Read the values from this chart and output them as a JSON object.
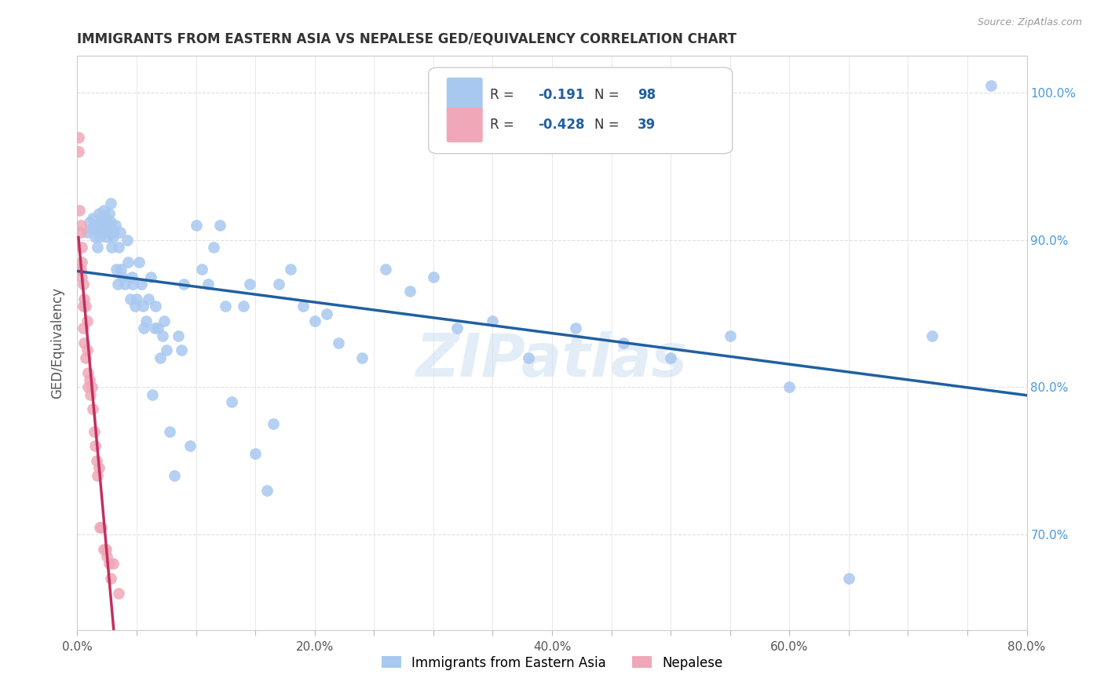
{
  "title": "IMMIGRANTS FROM EASTERN ASIA VS NEPALESE GED/EQUIVALENCY CORRELATION CHART",
  "source": "Source: ZipAtlas.com",
  "ylabel": "GED/Equivalency",
  "legend_label1": "Immigrants from Eastern Asia",
  "legend_label2": "Nepalese",
  "r1": "-0.191",
  "n1": "98",
  "r2": "-0.428",
  "n2": "39",
  "blue_color": "#A8C8F0",
  "pink_color": "#F0A8B8",
  "blue_line_color": "#2060A0",
  "pink_line_color": "#C03060",
  "xlim": [
    0.0,
    0.8
  ],
  "ylim": [
    0.635,
    1.025
  ],
  "ytick_positions": [
    0.7,
    0.8,
    0.9,
    1.0
  ],
  "ytick_labels": [
    "70.0%",
    "80.0%",
    "90.0%",
    "100.0%"
  ],
  "blue_x": [
    0.008,
    0.01,
    0.012,
    0.013,
    0.015,
    0.016,
    0.017,
    0.018,
    0.018,
    0.019,
    0.02,
    0.02,
    0.021,
    0.022,
    0.022,
    0.023,
    0.023,
    0.024,
    0.025,
    0.025,
    0.026,
    0.027,
    0.027,
    0.028,
    0.028,
    0.029,
    0.029,
    0.03,
    0.031,
    0.032,
    0.033,
    0.034,
    0.035,
    0.036,
    0.037,
    0.038,
    0.04,
    0.042,
    0.043,
    0.045,
    0.046,
    0.047,
    0.049,
    0.05,
    0.052,
    0.054,
    0.055,
    0.056,
    0.058,
    0.06,
    0.062,
    0.063,
    0.065,
    0.066,
    0.068,
    0.07,
    0.072,
    0.073,
    0.075,
    0.078,
    0.082,
    0.085,
    0.088,
    0.09,
    0.095,
    0.1,
    0.105,
    0.11,
    0.115,
    0.12,
    0.125,
    0.13,
    0.14,
    0.145,
    0.15,
    0.16,
    0.165,
    0.17,
    0.18,
    0.19,
    0.2,
    0.21,
    0.22,
    0.24,
    0.26,
    0.28,
    0.3,
    0.32,
    0.35,
    0.38,
    0.42,
    0.46,
    0.5,
    0.55,
    0.6,
    0.65,
    0.72,
    0.77
  ],
  "blue_y": [
    0.905,
    0.912,
    0.908,
    0.915,
    0.902,
    0.91,
    0.895,
    0.905,
    0.918,
    0.902,
    0.908,
    0.915,
    0.912,
    0.908,
    0.92,
    0.905,
    0.91,
    0.915,
    0.908,
    0.902,
    0.91,
    0.918,
    0.905,
    0.925,
    0.912,
    0.908,
    0.895,
    0.902,
    0.905,
    0.91,
    0.88,
    0.87,
    0.895,
    0.905,
    0.88,
    0.875,
    0.87,
    0.9,
    0.885,
    0.86,
    0.875,
    0.87,
    0.855,
    0.86,
    0.885,
    0.87,
    0.855,
    0.84,
    0.845,
    0.86,
    0.875,
    0.795,
    0.84,
    0.855,
    0.84,
    0.82,
    0.835,
    0.845,
    0.825,
    0.77,
    0.74,
    0.835,
    0.825,
    0.87,
    0.76,
    0.91,
    0.88,
    0.87,
    0.895,
    0.91,
    0.855,
    0.79,
    0.855,
    0.87,
    0.755,
    0.73,
    0.775,
    0.87,
    0.88,
    0.855,
    0.845,
    0.85,
    0.83,
    0.82,
    0.88,
    0.865,
    0.875,
    0.84,
    0.845,
    0.82,
    0.84,
    0.83,
    0.82,
    0.835,
    0.8,
    0.67,
    0.835,
    1.005
  ],
  "pink_x": [
    0.001,
    0.001,
    0.002,
    0.002,
    0.003,
    0.003,
    0.003,
    0.004,
    0.004,
    0.004,
    0.005,
    0.005,
    0.005,
    0.006,
    0.006,
    0.007,
    0.007,
    0.008,
    0.008,
    0.009,
    0.009,
    0.01,
    0.011,
    0.012,
    0.013,
    0.014,
    0.015,
    0.016,
    0.017,
    0.018,
    0.019,
    0.02,
    0.022,
    0.024,
    0.025,
    0.027,
    0.028,
    0.03,
    0.035
  ],
  "pink_y": [
    0.97,
    0.96,
    0.92,
    0.88,
    0.91,
    0.905,
    0.88,
    0.895,
    0.885,
    0.875,
    0.87,
    0.855,
    0.84,
    0.86,
    0.83,
    0.855,
    0.82,
    0.845,
    0.825,
    0.81,
    0.8,
    0.805,
    0.795,
    0.8,
    0.785,
    0.77,
    0.76,
    0.75,
    0.74,
    0.745,
    0.705,
    0.705,
    0.69,
    0.69,
    0.685,
    0.68,
    0.67,
    0.68,
    0.66
  ],
  "watermark": "ZIPatlas",
  "background_color": "#FFFFFF",
  "grid_color": "#E0E0E0"
}
